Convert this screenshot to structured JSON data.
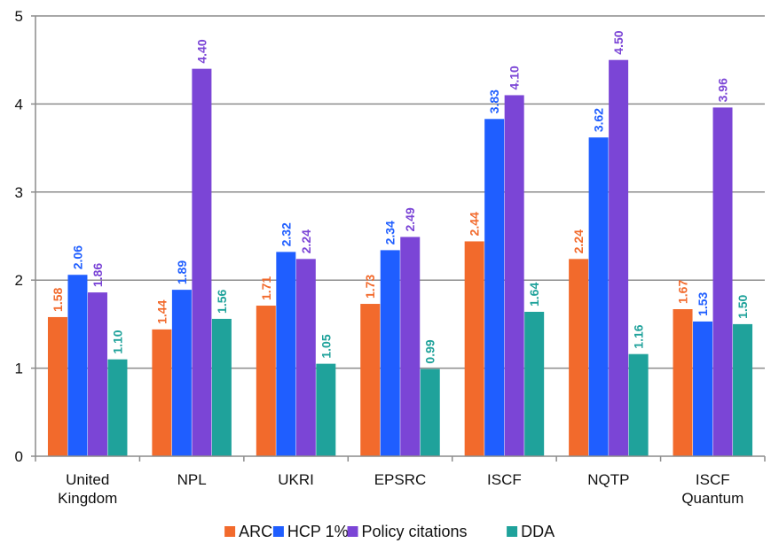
{
  "chart_data": {
    "type": "bar",
    "title": "",
    "xlabel": "",
    "ylabel": "",
    "ylim": [
      0,
      5
    ],
    "yticks": [
      "0",
      "1",
      "2",
      "3",
      "4",
      "5"
    ],
    "grid": "horizontal",
    "legend_position": "bottom",
    "categories": [
      [
        "United",
        "Kingdom"
      ],
      [
        "NPL"
      ],
      [
        "UKRI"
      ],
      [
        "EPSRC"
      ],
      [
        "ISCF"
      ],
      [
        "NQTP"
      ],
      [
        "ISCF",
        "Quantum"
      ]
    ],
    "series": [
      {
        "name": "ARC",
        "color": "#F26A2C",
        "values": [
          1.58,
          1.44,
          1.71,
          1.73,
          2.44,
          2.24,
          1.67
        ],
        "labels": [
          "1.58",
          "1.44",
          "1.71",
          "1.73",
          "2.44",
          "2.24",
          "1.67"
        ]
      },
      {
        "name": "HCP 1%",
        "color": "#1F5EFF",
        "values": [
          2.06,
          1.89,
          2.32,
          2.34,
          3.83,
          3.62,
          1.53
        ],
        "labels": [
          "2.06",
          "1.89",
          "2.32",
          "2.34",
          "3.83",
          "3.62",
          "1.53"
        ]
      },
      {
        "name": "Policy citations",
        "color": "#7B45D6",
        "values": [
          1.86,
          4.4,
          2.24,
          2.49,
          4.1,
          4.5,
          3.96
        ],
        "labels": [
          "1.86",
          "4.40",
          "2.24",
          "2.49",
          "4.10",
          "4.50",
          "3.96"
        ]
      },
      {
        "name": "DDA",
        "color": "#1FA29B",
        "values": [
          1.1,
          1.56,
          1.05,
          0.99,
          1.64,
          1.16,
          1.5
        ],
        "labels": [
          "1.10",
          "1.56",
          "1.05",
          "0.99",
          "1.64",
          "1.16",
          "1.50"
        ]
      }
    ]
  }
}
